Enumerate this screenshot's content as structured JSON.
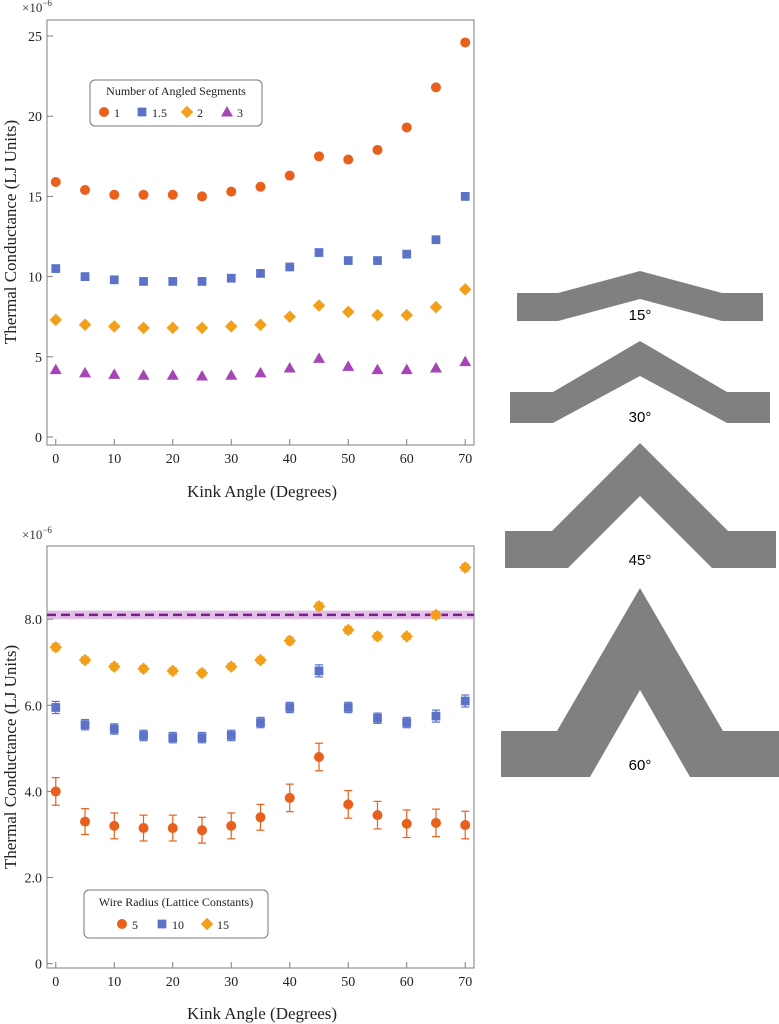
{
  "colors": {
    "orange": "#e8601c",
    "blue": "#5b72c8",
    "gold": "#f2a01a",
    "purple": "#a646b6",
    "ref_line": "#7a1f8a",
    "ref_band": "#d8a8e2",
    "wire": "#808080",
    "axis": "#7d7d7d"
  },
  "chart_data": [
    {
      "type": "scatter",
      "title": "",
      "multiplier": "×10",
      "multiplier_exp": "−6",
      "xlabel": "Kink Angle (Degrees)",
      "ylabel": "Thermal Conductance (LJ Units)",
      "xlim": [
        -1.5,
        71.5
      ],
      "ylim": [
        -0.5,
        26
      ],
      "xticks": [
        0,
        10,
        20,
        30,
        40,
        50,
        60,
        70
      ],
      "yticks": [
        0,
        5,
        10,
        15,
        20,
        25
      ],
      "ytick_labels": [
        "0",
        "5",
        "10",
        "15",
        "20",
        "25"
      ],
      "legend": {
        "title": "Number of Angled Segments",
        "position": "top-left"
      },
      "x": [
        0,
        5,
        10,
        15,
        20,
        25,
        30,
        35,
        40,
        45,
        50,
        55,
        60,
        65,
        70
      ],
      "series": [
        {
          "name": "1",
          "marker": "circle",
          "color": "#e8601c",
          "values": [
            15.9,
            15.4,
            15.1,
            15.1,
            15.1,
            15.0,
            15.3,
            15.6,
            16.3,
            17.5,
            17.3,
            17.9,
            19.3,
            21.8,
            24.6
          ]
        },
        {
          "name": "1.5",
          "marker": "square",
          "color": "#5b72c8",
          "values": [
            10.5,
            10.0,
            9.8,
            9.7,
            9.7,
            9.7,
            9.9,
            10.2,
            10.6,
            11.5,
            11.0,
            11.0,
            11.4,
            12.3,
            15.0
          ]
        },
        {
          "name": "2",
          "marker": "diamond",
          "color": "#f2a01a",
          "values": [
            7.3,
            7.0,
            6.9,
            6.8,
            6.8,
            6.8,
            6.9,
            7.0,
            7.5,
            8.2,
            7.8,
            7.6,
            7.6,
            8.1,
            9.2
          ]
        },
        {
          "name": "3",
          "marker": "triangle",
          "color": "#a646b6",
          "values": [
            4.2,
            4.0,
            3.9,
            3.85,
            3.85,
            3.8,
            3.85,
            4.0,
            4.3,
            4.9,
            4.4,
            4.2,
            4.2,
            4.3,
            4.7
          ]
        }
      ]
    },
    {
      "type": "scatter",
      "title": "",
      "multiplier": "×10",
      "multiplier_exp": "−6",
      "xlabel": "Kink Angle (Degrees)",
      "ylabel": "Thermal Conductance (LJ Units)",
      "xlim": [
        -1.5,
        71.5
      ],
      "ylim": [
        -0.1,
        9.7
      ],
      "xticks": [
        0,
        10,
        20,
        30,
        40,
        50,
        60,
        70
      ],
      "yticks": [
        0,
        2,
        4,
        6,
        8
      ],
      "ytick_labels": [
        "0",
        "2.0",
        "4.0",
        "6.0",
        "8.0"
      ],
      "legend": {
        "title": "Wire Radius (Lattice Constants)",
        "position": "bottom-left"
      },
      "reference_line": {
        "value": 8.1,
        "band": [
          8.0,
          8.2
        ],
        "style": "dashed"
      },
      "x": [
        0,
        5,
        10,
        15,
        20,
        25,
        30,
        35,
        40,
        45,
        50,
        55,
        60,
        65,
        70
      ],
      "series": [
        {
          "name": "5",
          "marker": "circle",
          "color": "#e8601c",
          "values": [
            4.0,
            3.3,
            3.2,
            3.15,
            3.15,
            3.1,
            3.2,
            3.4,
            3.85,
            4.8,
            3.7,
            3.45,
            3.25,
            3.27,
            3.22
          ],
          "errors": [
            0.32,
            0.3,
            0.3,
            0.3,
            0.3,
            0.3,
            0.3,
            0.3,
            0.32,
            0.32,
            0.32,
            0.32,
            0.32,
            0.32,
            0.32
          ]
        },
        {
          "name": "10",
          "marker": "square",
          "color": "#5b72c8",
          "values": [
            5.95,
            5.55,
            5.45,
            5.3,
            5.25,
            5.25,
            5.3,
            5.6,
            5.95,
            6.8,
            5.95,
            5.7,
            5.6,
            5.75,
            6.1
          ],
          "errors": [
            0.14,
            0.12,
            0.12,
            0.12,
            0.12,
            0.12,
            0.12,
            0.12,
            0.12,
            0.14,
            0.12,
            0.12,
            0.12,
            0.14,
            0.14
          ]
        },
        {
          "name": "15",
          "marker": "diamond",
          "color": "#f2a01a",
          "values": [
            7.35,
            7.05,
            6.9,
            6.85,
            6.8,
            6.75,
            6.9,
            7.05,
            7.5,
            8.3,
            7.75,
            7.6,
            7.6,
            8.1,
            9.2
          ],
          "errors": [
            0.08,
            0.07,
            0.07,
            0.07,
            0.07,
            0.07,
            0.07,
            0.07,
            0.08,
            0.08,
            0.08,
            0.08,
            0.07,
            0.08,
            0.08
          ]
        }
      ]
    }
  ],
  "wire_shapes": [
    {
      "label": "15°",
      "angle": 15
    },
    {
      "label": "30°",
      "angle": 30
    },
    {
      "label": "45°",
      "angle": 45
    },
    {
      "label": "60°",
      "angle": 60
    }
  ]
}
